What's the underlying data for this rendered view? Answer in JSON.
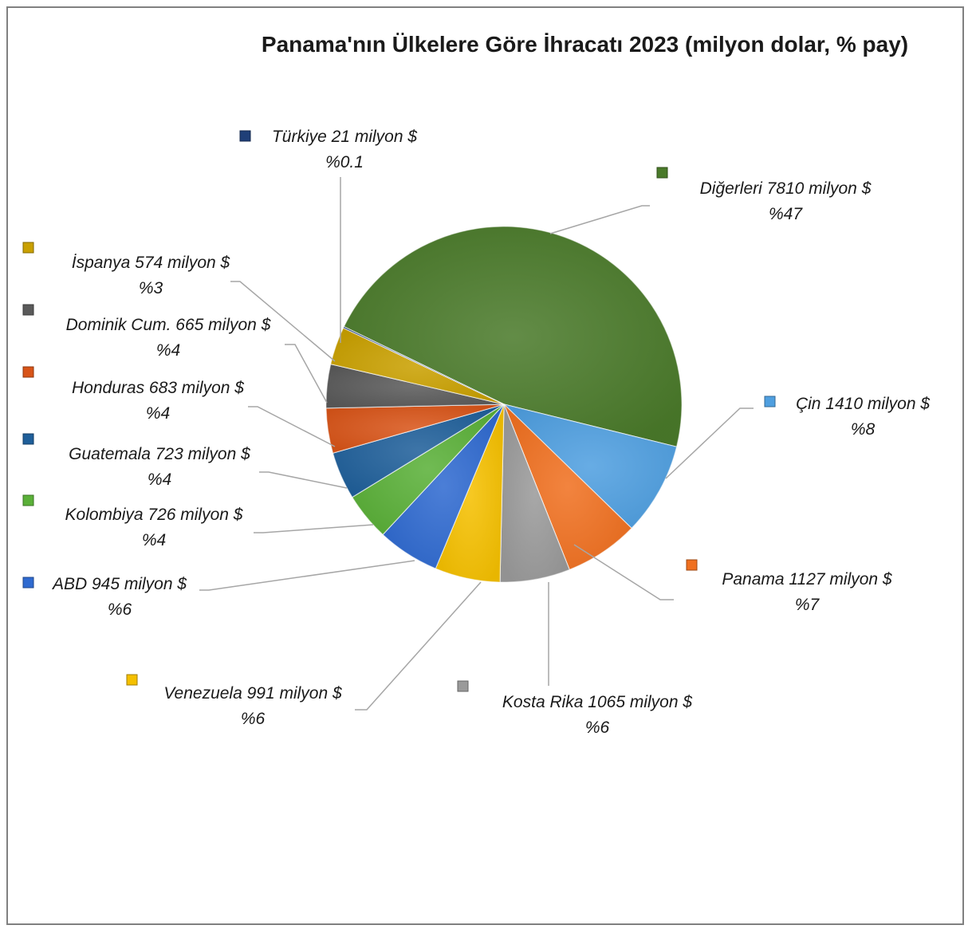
{
  "chart_data": {
    "type": "pie",
    "title": "Panama'nın Ülkelere Göre İhracatı 2023 (milyon dolar, % pay)",
    "unit": "milyon $",
    "slices": [
      {
        "label": "Diğerleri 7810 milyon $",
        "pct_label": "%47",
        "value": 7810,
        "color": "#4a7a2a"
      },
      {
        "label": "Çin 1410 milyon $",
        "pct_label": "%8",
        "value": 1410,
        "color": "#4f9fe0"
      },
      {
        "label": "Panama 1127 milyon $",
        "pct_label": "%7",
        "value": 1127,
        "color": "#f07020"
      },
      {
        "label": "Kosta Rika 1065 milyon $",
        "pct_label": "%6",
        "value": 1065,
        "color": "#9a9a9a"
      },
      {
        "label": "Venezuela 991 milyon $",
        "pct_label": "%6",
        "value": 991,
        "color": "#f5c000"
      },
      {
        "label": "ABD 945 milyon $",
        "pct_label": "%6",
        "value": 945,
        "color": "#2f6ad0"
      },
      {
        "label": "Kolombiya 726 milyon $",
        "pct_label": "%4",
        "value": 726,
        "color": "#5ab038"
      },
      {
        "label": "Guatemala 723 milyon $",
        "pct_label": "%4",
        "value": 723,
        "color": "#1f5f9a"
      },
      {
        "label": "Honduras 683 milyon $",
        "pct_label": "%4",
        "value": 683,
        "color": "#d85418"
      },
      {
        "label": "Dominik Cum. 665 milyon $",
        "pct_label": "%4",
        "value": 665,
        "color": "#5a5a5a"
      },
      {
        "label": "İspanya 574 milyon $",
        "pct_label": "%3",
        "value": 574,
        "color": "#c9a000"
      },
      {
        "label": "Türkiye 21 milyon $",
        "pct_label": "%0.1",
        "value": 21,
        "color": "#1f3f78"
      }
    ]
  }
}
